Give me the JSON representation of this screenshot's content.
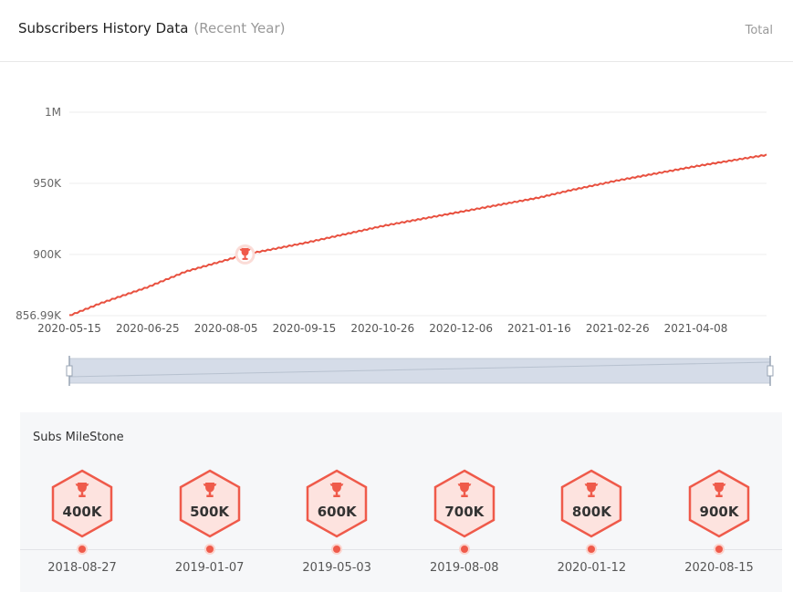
{
  "header": {
    "title": "Subscribers History Data",
    "subtitle": "(Recent Year)",
    "total_label": "Total"
  },
  "colors": {
    "line": "#e8503f",
    "grid": "#eeeeee",
    "slider_fill": "#d5dce8",
    "milestone_accent": "#ef5a4a"
  },
  "chart_data": {
    "type": "line",
    "title": "Subscribers History Data",
    "xlabel": "",
    "ylabel": "",
    "grid": true,
    "x_range": [
      "2020-05-15",
      "2021-05-15"
    ],
    "ylim": [
      856990,
      1000000
    ],
    "y_ticks": [
      {
        "value": 856990,
        "label": "856.99K"
      },
      {
        "value": 900000,
        "label": "900K"
      },
      {
        "value": 950000,
        "label": "950K"
      },
      {
        "value": 1000000,
        "label": "1M"
      }
    ],
    "x_ticks": [
      "2020-05-15",
      "2020-06-25",
      "2020-08-05",
      "2020-09-15",
      "2020-10-26",
      "2020-12-06",
      "2021-01-16",
      "2021-02-26",
      "2021-04-08"
    ],
    "series": [
      {
        "x": [
          "2020-05-15",
          "2020-06-01",
          "2020-06-25",
          "2020-07-15",
          "2020-08-05",
          "2020-08-15",
          "2020-09-15",
          "2020-10-26",
          "2020-12-06",
          "2021-01-16",
          "2021-02-01",
          "2021-02-26",
          "2021-04-08",
          "2021-05-15"
        ],
        "values": [
          856990,
          866000,
          877000,
          888000,
          896000,
          900000,
          908000,
          920000,
          930000,
          940000,
          945000,
          952000,
          962000,
          970000
        ]
      }
    ],
    "annotations": [
      {
        "type": "milestone-marker",
        "x": "2020-08-15",
        "y": 900000,
        "icon": "trophy-icon"
      }
    ]
  },
  "milestones": {
    "title": "Subs MileStone",
    "items": [
      {
        "label": "400K",
        "date": "2018-08-27"
      },
      {
        "label": "500K",
        "date": "2019-01-07"
      },
      {
        "label": "600K",
        "date": "2019-05-03"
      },
      {
        "label": "700K",
        "date": "2019-08-08"
      },
      {
        "label": "800K",
        "date": "2020-01-12"
      },
      {
        "label": "900K",
        "date": "2020-08-15"
      }
    ]
  }
}
